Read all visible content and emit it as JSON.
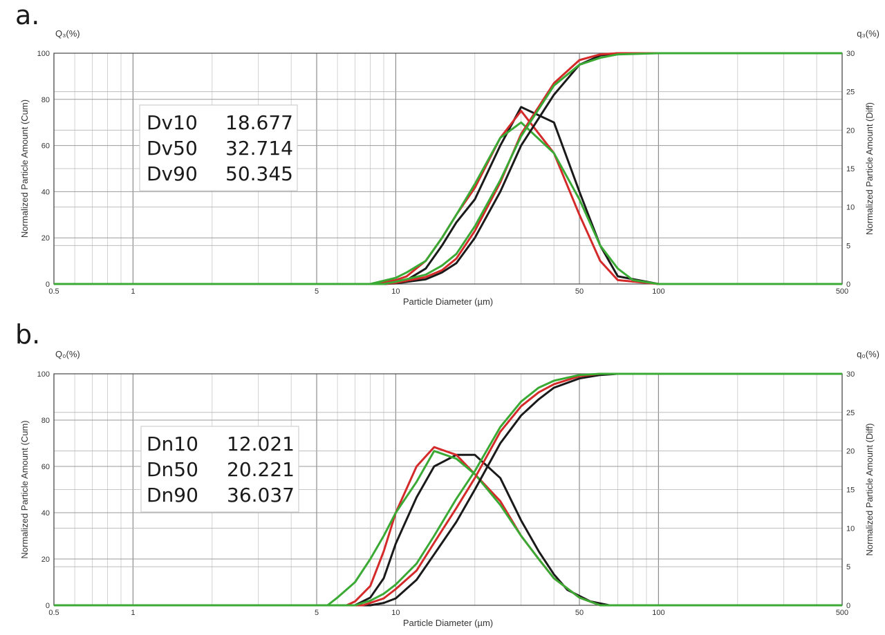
{
  "panels": {
    "a": {
      "letter": "a."
    },
    "b": {
      "letter": "b."
    }
  },
  "chart_data": [
    {
      "type": "line",
      "panel": "a",
      "y_left_label": "Q₃(%)",
      "y_right_label": "q₃(%)",
      "ylabel": "Normalized Particle Amount (Cum)",
      "ylabel_right": "Normalized Particle Amount (Diff)",
      "xlabel": "Particle Diameter (µm)",
      "xscale": "log",
      "xlim": [
        0.5,
        500
      ],
      "ylim": [
        0,
        100
      ],
      "ylim_right": [
        0,
        30
      ],
      "x_ticks": [
        "0.5",
        "1",
        "5",
        "10",
        "50",
        "100",
        "500"
      ],
      "y_ticks": [
        "0",
        "20",
        "40",
        "60",
        "80",
        "100"
      ],
      "y_right_ticks": [
        "0",
        "5",
        "10",
        "15",
        "20",
        "25",
        "30"
      ],
      "grid": true,
      "colors": {
        "black": "#1a1a1a",
        "red": "#d42a2a",
        "green": "#3aaa35"
      },
      "stats": [
        {
          "label": "Dv10",
          "value": "18.677"
        },
        {
          "label": "Dv50",
          "value": "32.714"
        },
        {
          "label": "Dv90",
          "value": "50.345"
        }
      ],
      "series": [
        {
          "color": "black",
          "kind": "diff",
          "x": [
            0.5,
            9,
            10,
            11,
            13,
            15,
            17,
            20,
            25,
            30,
            40,
            50,
            60,
            70,
            100,
            500
          ],
          "y": [
            0,
            0,
            0.2,
            0.5,
            2,
            5,
            8,
            11,
            18,
            23,
            21,
            12,
            5,
            1,
            0,
            0
          ]
        },
        {
          "color": "red",
          "kind": "diff",
          "x": [
            0.5,
            8,
            10,
            11,
            13,
            15,
            17,
            20,
            25,
            30,
            40,
            50,
            60,
            70,
            100,
            500
          ],
          "y": [
            0,
            0,
            0.5,
            1,
            3,
            6,
            9,
            12.5,
            19,
            22.5,
            17,
            9,
            3,
            0.5,
            0,
            0
          ]
        },
        {
          "color": "green",
          "kind": "diff",
          "x": [
            0.5,
            8,
            10,
            11,
            13,
            15,
            17,
            20,
            25,
            30,
            40,
            50,
            60,
            70,
            80,
            100,
            500
          ],
          "y": [
            0,
            0,
            0.8,
            1.5,
            3,
            6,
            9,
            13,
            19,
            21,
            17,
            11,
            5,
            2,
            0.5,
            0,
            0
          ]
        },
        {
          "color": "black",
          "kind": "cum",
          "x": [
            0.5,
            9,
            10,
            13,
            15,
            17,
            20,
            25,
            30,
            40,
            50,
            60,
            70,
            100,
            500
          ],
          "y": [
            0,
            0,
            0.3,
            2,
            5,
            9,
            20,
            40,
            60,
            82,
            95,
            99,
            100,
            100,
            100
          ]
        },
        {
          "color": "red",
          "kind": "cum",
          "x": [
            0.5,
            9,
            10,
            13,
            15,
            17,
            20,
            25,
            30,
            40,
            50,
            60,
            70,
            100,
            500
          ],
          "y": [
            0,
            0,
            0.5,
            3,
            6,
            11,
            23,
            44,
            65,
            87,
            97,
            99.5,
            100,
            100,
            100
          ]
        },
        {
          "color": "green",
          "kind": "cum",
          "x": [
            0.5,
            9,
            10,
            13,
            15,
            17,
            20,
            25,
            30,
            40,
            50,
            60,
            70,
            100,
            500
          ],
          "y": [
            0,
            0,
            1,
            4,
            8,
            13,
            25,
            45,
            64,
            86,
            95,
            98,
            99.5,
            100,
            100
          ]
        }
      ]
    },
    {
      "type": "line",
      "panel": "b",
      "y_left_label": "Q₀(%)",
      "y_right_label": "q₀(%)",
      "ylabel": "Normalized Particle Amount (Cum)",
      "ylabel_right": "Normalized Particle Amount (Diff)",
      "xlabel": "Particle Diameter (µm)",
      "xscale": "log",
      "xlim": [
        0.5,
        500
      ],
      "ylim": [
        0,
        100
      ],
      "ylim_right": [
        0,
        30
      ],
      "x_ticks": [
        "0.5",
        "1",
        "5",
        "10",
        "50",
        "100",
        "500"
      ],
      "y_ticks": [
        "0",
        "20",
        "40",
        "60",
        "80",
        "100"
      ],
      "y_right_ticks": [
        "0",
        "5",
        "10",
        "15",
        "20",
        "25",
        "30"
      ],
      "grid": true,
      "colors": {
        "black": "#1a1a1a",
        "red": "#d42a2a",
        "green": "#3aaa35"
      },
      "stats": [
        {
          "label": "Dn10",
          "value": "12.021"
        },
        {
          "label": "Dn50",
          "value": "20.221"
        },
        {
          "label": "Dn90",
          "value": "36.037"
        }
      ],
      "series": [
        {
          "color": "black",
          "kind": "diff",
          "x": [
            0.5,
            7,
            8,
            9,
            10,
            12,
            14,
            17,
            20,
            25,
            30,
            35,
            40,
            45,
            55,
            65,
            500
          ],
          "y": [
            0,
            0,
            1,
            3.5,
            8,
            14,
            18,
            19.5,
            19.5,
            16.5,
            11,
            7,
            4,
            2,
            0.5,
            0,
            0
          ]
        },
        {
          "color": "red",
          "kind": "diff",
          "x": [
            0.5,
            6.5,
            7,
            8,
            9,
            10,
            12,
            14,
            17,
            20,
            25,
            30,
            35,
            40,
            50,
            60,
            500
          ],
          "y": [
            0,
            0,
            0.5,
            2.5,
            7,
            12,
            18,
            20.5,
            19.5,
            17,
            13.5,
            9,
            6,
            3.5,
            1,
            0,
            0
          ]
        },
        {
          "color": "green",
          "kind": "diff",
          "x": [
            0.5,
            5.5,
            6,
            7,
            8,
            9,
            10,
            12,
            14,
            17,
            20,
            25,
            30,
            35,
            40,
            50,
            60,
            500
          ],
          "y": [
            0,
            0,
            1,
            3,
            6,
            9,
            12,
            16,
            20,
            19,
            17,
            13,
            9,
            6,
            3.5,
            1,
            0,
            0
          ]
        },
        {
          "color": "black",
          "kind": "cum",
          "x": [
            0.5,
            8,
            9,
            10,
            12,
            14,
            17,
            20,
            25,
            30,
            35,
            40,
            50,
            60,
            70,
            500
          ],
          "y": [
            0,
            0,
            1,
            3,
            11,
            22,
            36,
            50,
            70,
            82,
            89,
            94,
            98,
            99.5,
            100,
            100
          ]
        },
        {
          "color": "red",
          "kind": "cum",
          "x": [
            0.5,
            7.5,
            8,
            9,
            10,
            12,
            14,
            17,
            20,
            25,
            30,
            35,
            40,
            50,
            60,
            500
          ],
          "y": [
            0,
            0,
            1,
            3,
            7,
            15,
            27,
            42,
            55,
            75,
            86,
            92,
            95.5,
            99,
            100,
            100
          ]
        },
        {
          "color": "green",
          "kind": "cum",
          "x": [
            0.5,
            7,
            8,
            9,
            10,
            12,
            14,
            17,
            20,
            25,
            30,
            35,
            40,
            50,
            60,
            500
          ],
          "y": [
            0,
            0,
            2,
            5,
            9,
            18,
            30,
            46,
            58,
            77,
            88,
            94,
            97,
            99.5,
            100,
            100
          ]
        }
      ]
    }
  ]
}
